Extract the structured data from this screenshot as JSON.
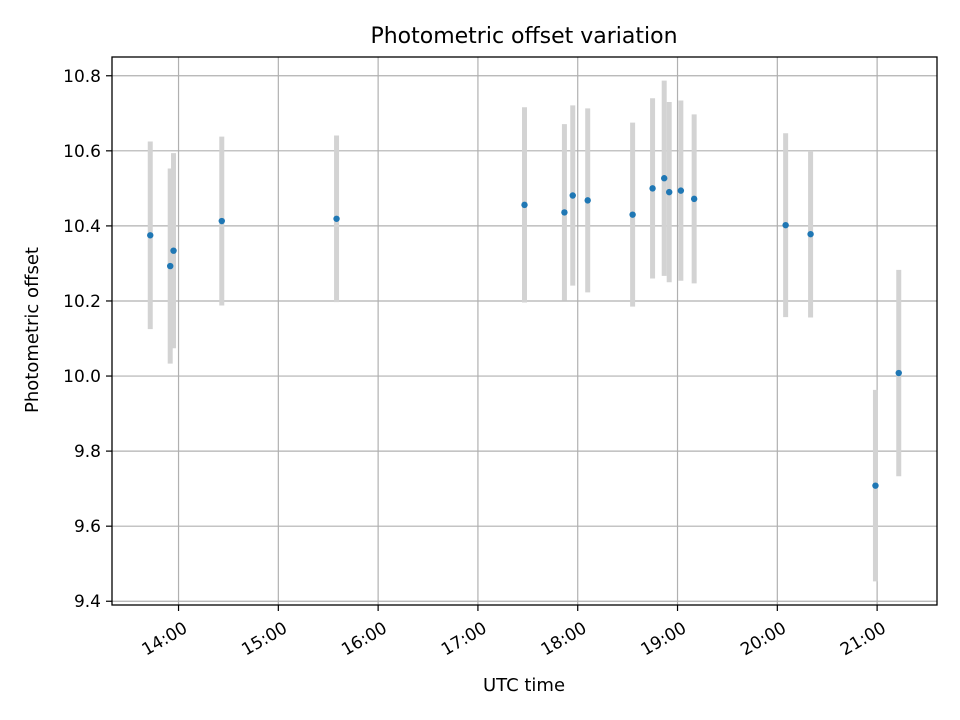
{
  "chart_data": {
    "type": "scatter",
    "title": "Photometric offset variation",
    "xlabel": "UTC time",
    "ylabel": "Photometric offset",
    "x_tick_labels": [
      "14:00",
      "15:00",
      "16:00",
      "17:00",
      "18:00",
      "19:00",
      "20:00",
      "21:00"
    ],
    "x_ticks": [
      "14:00",
      "15:00",
      "16:00",
      "17:00",
      "18:00",
      "19:00",
      "20:00",
      "21:00"
    ],
    "xlim": [
      "13:20",
      "21:36"
    ],
    "y_tick_labels": [
      "9.4",
      "9.6",
      "9.8",
      "10.0",
      "10.2",
      "10.4",
      "10.6",
      "10.8"
    ],
    "y_ticks": [
      9.4,
      9.6,
      9.8,
      10.0,
      10.2,
      10.4,
      10.6,
      10.8
    ],
    "ylim": [
      9.39,
      10.85
    ],
    "grid": true,
    "points": [
      {
        "x": "13:43",
        "y": 10.375,
        "err": 0.25
      },
      {
        "x": "13:55",
        "y": 10.293,
        "err": 0.26
      },
      {
        "x": "13:57",
        "y": 10.334,
        "err": 0.26
      },
      {
        "x": "14:26",
        "y": 10.413,
        "err": 0.225
      },
      {
        "x": "15:35",
        "y": 10.419,
        "err": 0.222
      },
      {
        "x": "17:28",
        "y": 10.456,
        "err": 0.26
      },
      {
        "x": "17:52",
        "y": 10.436,
        "err": 0.235
      },
      {
        "x": "17:57",
        "y": 10.481,
        "err": 0.24
      },
      {
        "x": "18:06",
        "y": 10.468,
        "err": 0.245
      },
      {
        "x": "18:33",
        "y": 10.43,
        "err": 0.245
      },
      {
        "x": "18:45",
        "y": 10.5,
        "err": 0.24
      },
      {
        "x": "18:52",
        "y": 10.527,
        "err": 0.26
      },
      {
        "x": "18:55",
        "y": 10.49,
        "err": 0.24
      },
      {
        "x": "19:02",
        "y": 10.494,
        "err": 0.24
      },
      {
        "x": "19:10",
        "y": 10.472,
        "err": 0.225
      },
      {
        "x": "20:05",
        "y": 10.402,
        "err": 0.245
      },
      {
        "x": "20:20",
        "y": 10.378,
        "err": 0.222
      },
      {
        "x": "20:59",
        "y": 9.708,
        "err": 0.255
      },
      {
        "x": "21:13",
        "y": 10.008,
        "err": 0.275
      }
    ],
    "colors": {
      "point": "#1f77b4",
      "errorbar": "#d3d3d3",
      "grid": "#b0b0b0",
      "axes": "#000000"
    }
  }
}
